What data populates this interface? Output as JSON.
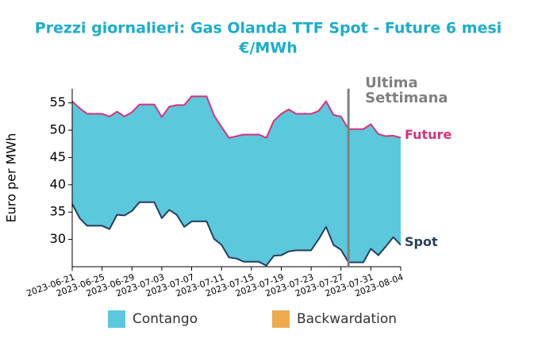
{
  "chart_data": {
    "type": "line",
    "title": "Prezzi giornalieri: Gas Olanda TTF Spot - Future 6 mesi",
    "subtitle": "€/MWh",
    "y_label": "Euro per MWh",
    "x": [
      "2023-06-21",
      "2023-06-22",
      "2023-06-23",
      "2023-06-24",
      "2023-06-25",
      "2023-06-26",
      "2023-06-27",
      "2023-06-28",
      "2023-06-29",
      "2023-06-30",
      "2023-07-01",
      "2023-07-02",
      "2023-07-03",
      "2023-07-04",
      "2023-07-05",
      "2023-07-06",
      "2023-07-07",
      "2023-07-08",
      "2023-07-09",
      "2023-07-10",
      "2023-07-11",
      "2023-07-12",
      "2023-07-13",
      "2023-07-14",
      "2023-07-15",
      "2023-07-16",
      "2023-07-17",
      "2023-07-18",
      "2023-07-19",
      "2023-07-20",
      "2023-07-21",
      "2023-07-22",
      "2023-07-23",
      "2023-07-24",
      "2023-07-25",
      "2023-07-26",
      "2023-07-27",
      "2023-07-28",
      "2023-07-29",
      "2023-07-30",
      "2023-07-31",
      "2023-08-01",
      "2023-08-02",
      "2023-08-03",
      "2023-08-04"
    ],
    "series": [
      {
        "name": "Future",
        "color": "#d8327a",
        "values": [
          55.3,
          54.0,
          53.0,
          53.0,
          53.0,
          52.5,
          53.4,
          52.5,
          53.3,
          54.7,
          54.7,
          54.7,
          52.4,
          54.3,
          54.6,
          54.6,
          56.2,
          56.2,
          56.2,
          52.7,
          50.6,
          48.6,
          48.9,
          49.2,
          49.2,
          49.2,
          48.6,
          51.7,
          53.0,
          53.8,
          53.0,
          53.0,
          53.0,
          53.5,
          55.3,
          52.8,
          52.5,
          50.2,
          50.2,
          50.2,
          51.1,
          49.3,
          48.9,
          49.0,
          48.6
        ]
      },
      {
        "name": "Spot",
        "color": "#253f5e",
        "values": [
          36.5,
          33.9,
          32.5,
          32.5,
          32.5,
          31.9,
          34.5,
          34.4,
          35.2,
          36.8,
          36.8,
          36.8,
          33.9,
          35.4,
          34.5,
          32.3,
          33.3,
          33.3,
          33.3,
          30.1,
          29.0,
          26.7,
          26.5,
          25.9,
          25.9,
          25.9,
          25.2,
          27.0,
          27.1,
          27.8,
          28.0,
          28.0,
          28.0,
          30.0,
          32.3,
          29.0,
          28.1,
          25.8,
          25.8,
          25.8,
          28.3,
          27.1,
          28.7,
          30.4,
          29.0
        ]
      }
    ],
    "fill_legend": [
      {
        "name": "Contango",
        "color": "#5bc8dc"
      },
      {
        "name": "Backwardation",
        "color": "#eeab4e"
      }
    ],
    "annotation": {
      "x": "2023-07-28",
      "lines": [
        "Ultima",
        "Settimana"
      ],
      "color": "#808080"
    },
    "xlim": [
      "2023-06-21",
      "2023-08-04"
    ],
    "xticks": [
      "2023-06-21",
      "2023-06-25",
      "2023-06-29",
      "2023-07-03",
      "2023-07-07",
      "2023-07-11",
      "2023-07-15",
      "2023-07-19",
      "2023-07-23",
      "2023-07-27",
      "2023-07-31",
      "2023-08-04"
    ],
    "ylim": [
      25,
      57.6
    ],
    "yticks": [
      30,
      35,
      40,
      45,
      50,
      55
    ]
  }
}
